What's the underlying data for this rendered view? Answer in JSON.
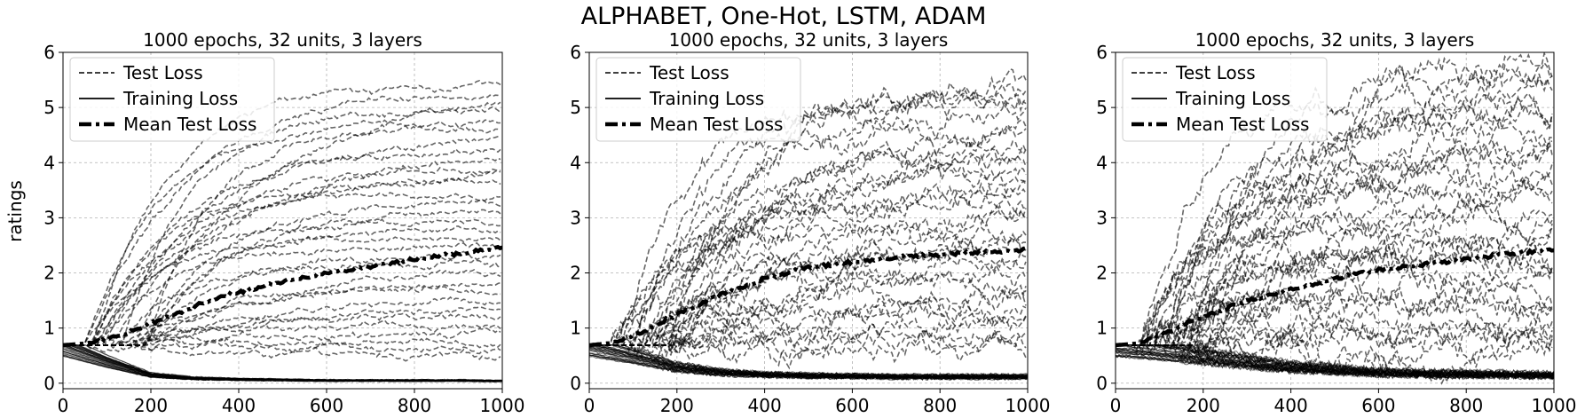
{
  "figure": {
    "title": "ALPHABET, One-Hot, LSTM, ADAM",
    "ylabel": "ratings"
  },
  "chart_data": [
    {
      "type": "line",
      "title": "1000 epochs, 32 units, 3 layers",
      "xlabel": "",
      "ylabel": "ratings",
      "xlim": [
        0,
        1000
      ],
      "ylim": [
        -0.1,
        6
      ],
      "xticks": [
        0,
        200,
        400,
        600,
        800,
        1000
      ],
      "yticks": [
        0,
        1,
        2,
        3,
        4,
        5,
        6
      ],
      "grid": true,
      "legend_position": "top-left",
      "legend": [
        "Test Loss",
        "Training Loss",
        "Mean Test Loss"
      ],
      "series": [
        {
          "name": "Mean Test Loss",
          "x": [
            0,
            50,
            100,
            150,
            200,
            300,
            400,
            500,
            600,
            700,
            800,
            900,
            1000
          ],
          "y": [
            0.69,
            0.72,
            0.8,
            0.93,
            1.08,
            1.4,
            1.65,
            1.85,
            2.0,
            2.12,
            2.25,
            2.35,
            2.45
          ]
        },
        {
          "name": "Training Loss",
          "x": [
            0,
            100,
            200,
            300,
            400,
            500,
            600,
            700,
            800,
            900,
            1000
          ],
          "y": [
            0.69,
            0.4,
            0.15,
            0.09,
            0.07,
            0.06,
            0.05,
            0.05,
            0.05,
            0.05,
            0.04
          ]
        },
        {
          "name": "Test Loss",
          "count": 32,
          "final_range": [
            0.4,
            5.5
          ]
        }
      ]
    },
    {
      "type": "line",
      "title": "1000 epochs, 32 units, 3 layers",
      "xlabel": "",
      "ylabel": "",
      "xlim": [
        0,
        1000
      ],
      "ylim": [
        -0.1,
        6
      ],
      "xticks": [
        0,
        200,
        400,
        600,
        800,
        1000
      ],
      "yticks": [
        0,
        1,
        2,
        3,
        4,
        5,
        6
      ],
      "grid": true,
      "legend_position": "top-left",
      "legend": [
        "Test Loss",
        "Training Loss",
        "Mean Test Loss"
      ],
      "series": [
        {
          "name": "Mean Test Loss",
          "x": [
            0,
            50,
            100,
            150,
            200,
            300,
            400,
            500,
            600,
            700,
            800,
            900,
            1000
          ],
          "y": [
            0.69,
            0.73,
            0.85,
            1.05,
            1.25,
            1.6,
            1.9,
            2.1,
            2.2,
            2.28,
            2.33,
            2.38,
            2.42
          ]
        },
        {
          "name": "Training Loss",
          "x": [
            0,
            100,
            200,
            300,
            400,
            500,
            600,
            700,
            800,
            900,
            1000
          ],
          "y": [
            0.69,
            0.5,
            0.3,
            0.2,
            0.16,
            0.14,
            0.13,
            0.12,
            0.12,
            0.12,
            0.12
          ]
        },
        {
          "name": "Test Loss",
          "count": 32,
          "final_range": [
            0.5,
            5.6
          ]
        }
      ]
    },
    {
      "type": "line",
      "title": "1000 epochs, 32 units, 3 layers",
      "xlabel": "",
      "ylabel": "",
      "xlim": [
        0,
        1000
      ],
      "ylim": [
        -0.1,
        6
      ],
      "xticks": [
        0,
        200,
        400,
        600,
        800,
        1000
      ],
      "yticks": [
        0,
        1,
        2,
        3,
        4,
        5,
        6
      ],
      "grid": true,
      "legend_position": "top-left",
      "legend": [
        "Test Loss",
        "Training Loss",
        "Mean Test Loss"
      ],
      "series": [
        {
          "name": "Mean Test Loss",
          "x": [
            0,
            50,
            100,
            150,
            200,
            300,
            400,
            500,
            600,
            700,
            800,
            900,
            1000
          ],
          "y": [
            0.69,
            0.72,
            0.85,
            1.05,
            1.2,
            1.5,
            1.7,
            1.9,
            2.05,
            2.15,
            2.25,
            2.35,
            2.42
          ]
        },
        {
          "name": "Training Loss",
          "x": [
            0,
            100,
            200,
            300,
            400,
            500,
            600,
            700,
            800,
            900,
            1000
          ],
          "y": [
            0.69,
            0.6,
            0.5,
            0.4,
            0.3,
            0.25,
            0.2,
            0.18,
            0.17,
            0.16,
            0.15
          ]
        },
        {
          "name": "Test Loss",
          "count": 32,
          "final_range": [
            0.4,
            5.9
          ]
        }
      ]
    }
  ]
}
